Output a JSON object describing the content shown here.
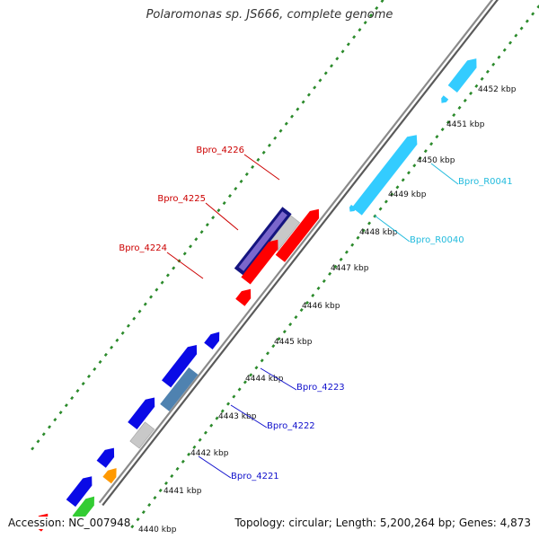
{
  "title": "Polaromonas sp. JS666, complete genome",
  "footer": {
    "accession": "Accession: NC_007948",
    "topology": "Topology: circular; Length: 5,200,264 bp; Genes: 4,873"
  },
  "colors": {
    "backbone": "#8a8a8a",
    "ticks": "#2b8a2b",
    "red": "#ff0000",
    "blue": "#0a0ae6",
    "navy": "#141480",
    "slate": "#4f82b0",
    "gray": "#c8c8c8",
    "orange": "#ff9900",
    "green": "#33cc33",
    "cyan": "#33ccff",
    "label_red": "#cc0000",
    "label_blue": "#1010cc",
    "label_cyan": "#22bbdd"
  },
  "kbp_labels": [
    "4440 kbp",
    "4441 kbp",
    "4442 kbp",
    "4443 kbp",
    "4444 kbp",
    "4445 kbp",
    "4446 kbp",
    "4447 kbp",
    "4448 kbp",
    "4449 kbp",
    "4450 kbp",
    "4451 kbp",
    "4452 kbp"
  ],
  "gene_labels": [
    {
      "name": "Bpro_4226",
      "color": "label_red"
    },
    {
      "name": "Bpro_4225",
      "color": "label_red"
    },
    {
      "name": "Bpro_4224",
      "color": "label_red"
    },
    {
      "name": "Bpro_4223",
      "color": "label_blue"
    },
    {
      "name": "Bpro_4222",
      "color": "label_blue"
    },
    {
      "name": "Bpro_4221",
      "color": "label_blue"
    },
    {
      "name": "Bpro_R0041",
      "color": "label_cyan"
    },
    {
      "name": "Bpro_R0040",
      "color": "label_cyan"
    }
  ]
}
